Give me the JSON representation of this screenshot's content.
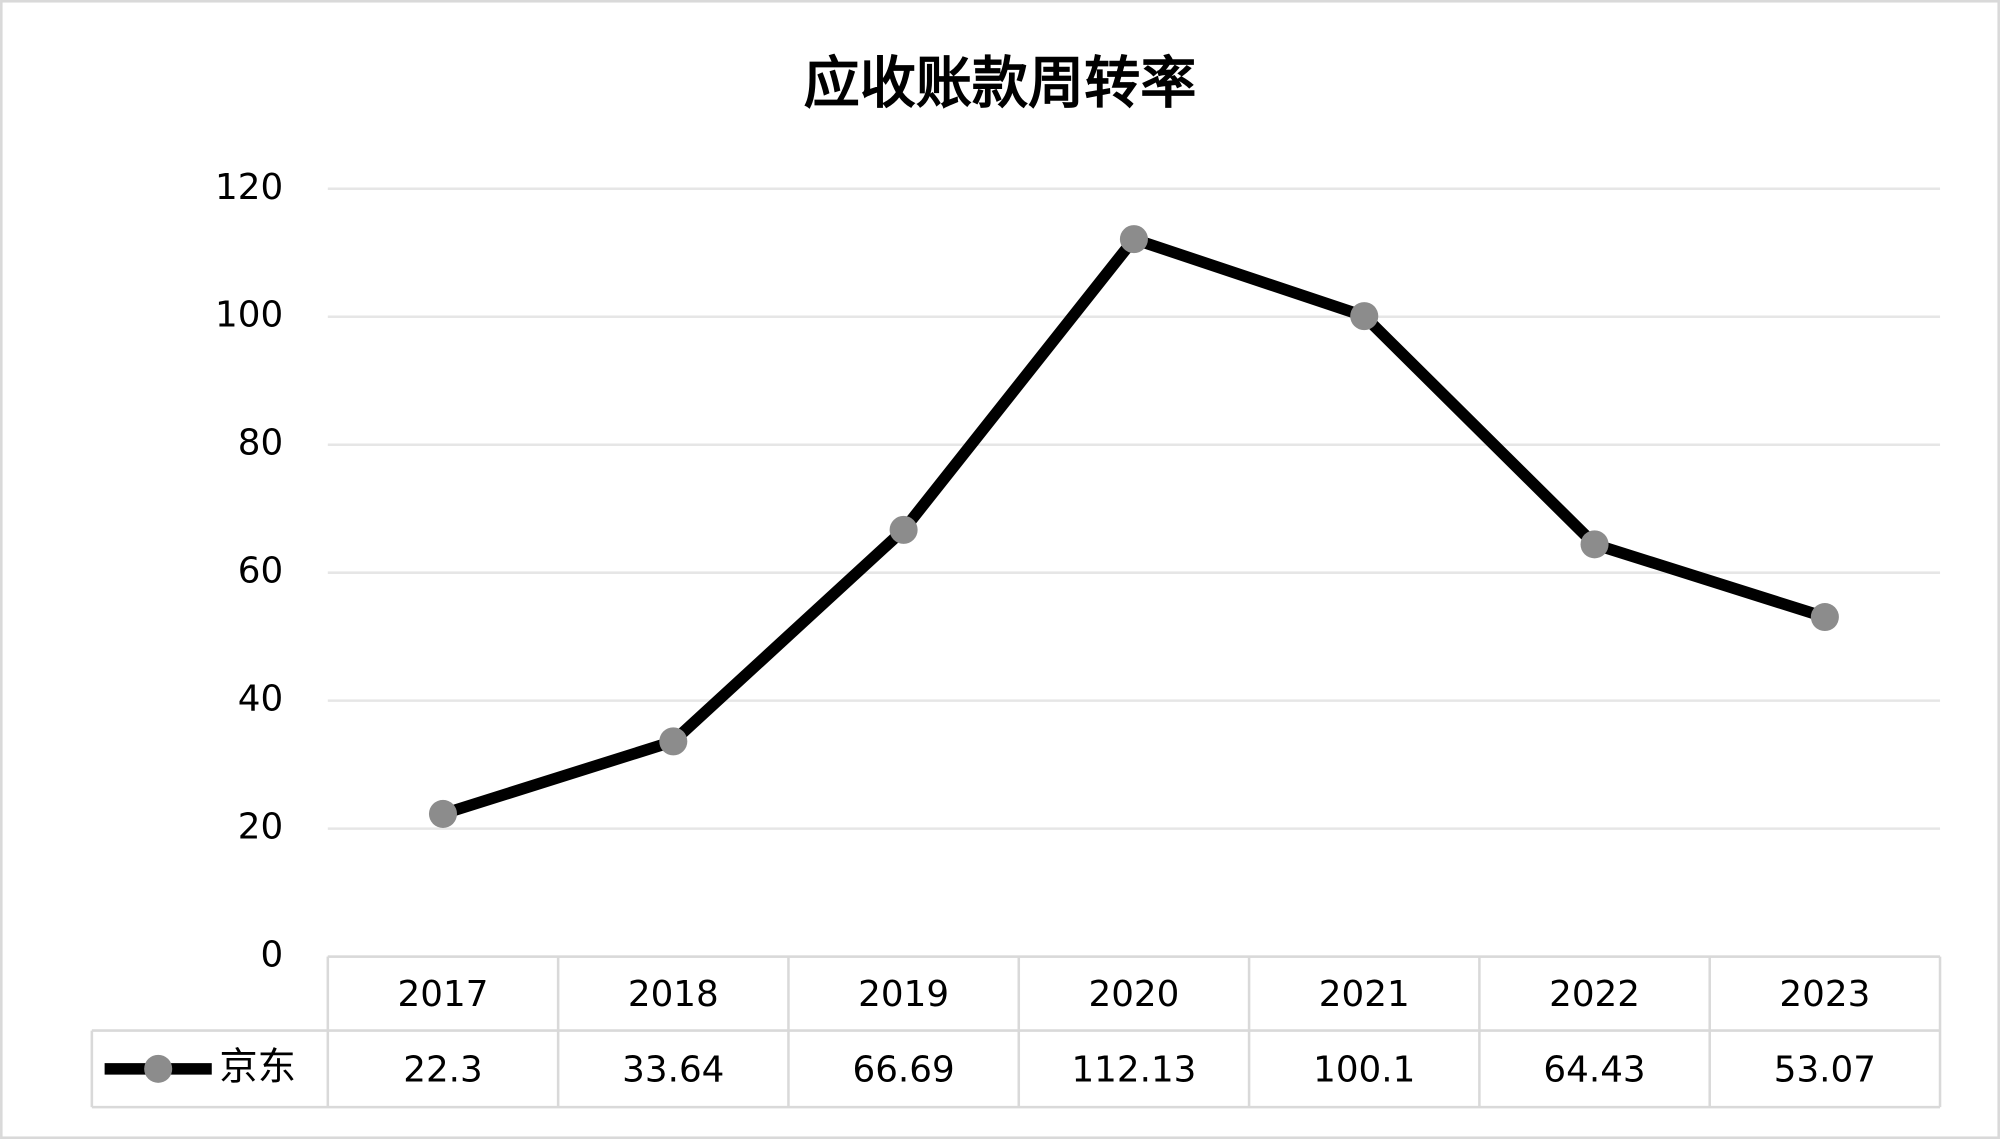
{
  "chart_data": {
    "type": "line",
    "title": "应收账款周转率",
    "categories": [
      "2017",
      "2018",
      "2019",
      "2020",
      "2021",
      "2022",
      "2023"
    ],
    "series": [
      {
        "name": "京东",
        "color": "#000000",
        "marker_color": "#8c8c8c",
        "values": [
          22.3,
          33.64,
          66.69,
          112.13,
          100.1,
          64.43,
          53.07
        ]
      }
    ],
    "ylim": [
      0,
      120
    ],
    "yticks": [
      0,
      20,
      40,
      60,
      80,
      100,
      120
    ],
    "grid": true,
    "data_table": true
  }
}
